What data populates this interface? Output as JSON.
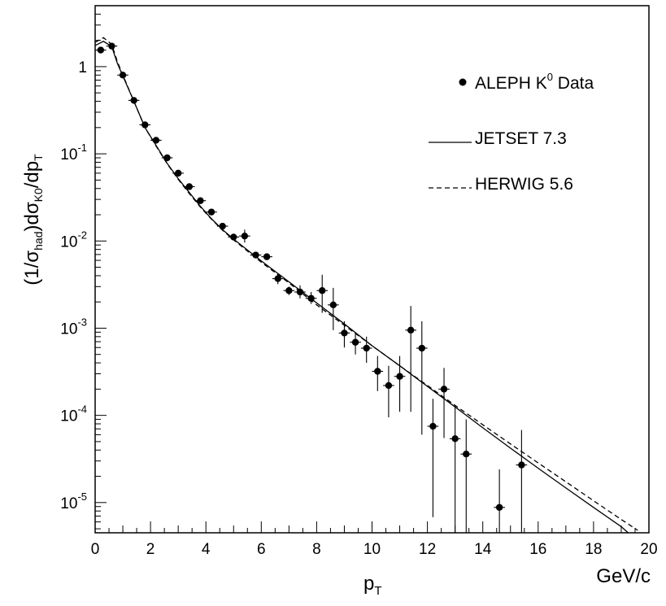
{
  "chart_data": {
    "type": "scatter",
    "yscale": "log",
    "xlim": [
      0,
      20
    ],
    "ylim": [
      4.5e-06,
      5
    ],
    "grid": false,
    "legend_placement": "top-right",
    "xlabel": "p",
    "xlabel_sub": "T",
    "x_unit": "GeV/c",
    "ylabel": {
      "open": "(1/σ",
      "sub1": "had",
      "mid": ")dσ",
      "sub2": "K0",
      "tail": "/dp",
      "sub3": "T"
    },
    "x_ticks": [
      0,
      2,
      4,
      6,
      8,
      10,
      12,
      14,
      16,
      18,
      20
    ],
    "y_ticks": [
      {
        "value": 1,
        "base": "1",
        "exp": ""
      },
      {
        "value": 0.1,
        "base": "10",
        "exp": "-1"
      },
      {
        "value": 0.01,
        "base": "10",
        "exp": "-2"
      },
      {
        "value": 0.001,
        "base": "10",
        "exp": "-3"
      },
      {
        "value": 0.0001,
        "base": "10",
        "exp": "-4"
      },
      {
        "value": 1e-05,
        "base": "10",
        "exp": "-5"
      }
    ],
    "legend": {
      "data": "ALEPH K",
      "data_sup": "0",
      "data_tail": " Data",
      "jetset": "JETSET 7.3",
      "herwig": "HERWIG 5.6"
    },
    "series": [
      {
        "name": "ALEPH K0 Data",
        "kind": "points",
        "points": [
          {
            "x": 0.2,
            "y": 1.55,
            "ylo": 1.45,
            "yhi": 1.65
          },
          {
            "x": 0.6,
            "y": 1.72,
            "ylo": 1.62,
            "yhi": 1.82
          },
          {
            "x": 1.0,
            "y": 0.8,
            "ylo": 0.76,
            "yhi": 0.84
          },
          {
            "x": 1.4,
            "y": 0.41,
            "ylo": 0.39,
            "yhi": 0.43
          },
          {
            "x": 1.8,
            "y": 0.215,
            "ylo": 0.205,
            "yhi": 0.225
          },
          {
            "x": 2.2,
            "y": 0.143,
            "ylo": 0.136,
            "yhi": 0.15
          },
          {
            "x": 2.6,
            "y": 0.09,
            "ylo": 0.086,
            "yhi": 0.094
          },
          {
            "x": 3.0,
            "y": 0.06,
            "ylo": 0.057,
            "yhi": 0.063
          },
          {
            "x": 3.4,
            "y": 0.042,
            "ylo": 0.04,
            "yhi": 0.044
          },
          {
            "x": 3.8,
            "y": 0.029,
            "ylo": 0.0275,
            "yhi": 0.0305
          },
          {
            "x": 4.2,
            "y": 0.0215,
            "ylo": 0.0203,
            "yhi": 0.0227
          },
          {
            "x": 4.6,
            "y": 0.0148,
            "ylo": 0.014,
            "yhi": 0.0156
          },
          {
            "x": 5.0,
            "y": 0.0111,
            "ylo": 0.0104,
            "yhi": 0.0118
          },
          {
            "x": 5.4,
            "y": 0.0114,
            "ylo": 0.0096,
            "yhi": 0.0135
          },
          {
            "x": 5.8,
            "y": 0.0069,
            "ylo": 0.0064,
            "yhi": 0.0074
          },
          {
            "x": 6.2,
            "y": 0.0066,
            "ylo": 0.0061,
            "yhi": 0.0071
          },
          {
            "x": 6.6,
            "y": 0.0037,
            "ylo": 0.0032,
            "yhi": 0.0042
          },
          {
            "x": 7.0,
            "y": 0.0027,
            "ylo": 0.0024,
            "yhi": 0.003
          },
          {
            "x": 7.4,
            "y": 0.0026,
            "ylo": 0.0022,
            "yhi": 0.0031
          },
          {
            "x": 7.8,
            "y": 0.0022,
            "ylo": 0.0019,
            "yhi": 0.0026
          },
          {
            "x": 8.2,
            "y": 0.0027,
            "ylo": 0.0015,
            "yhi": 0.0041
          },
          {
            "x": 8.6,
            "y": 0.00185,
            "ylo": 0.00095,
            "yhi": 0.0029
          },
          {
            "x": 9.0,
            "y": 0.00088,
            "ylo": 0.0006,
            "yhi": 0.0012
          },
          {
            "x": 9.4,
            "y": 0.00069,
            "ylo": 0.0005,
            "yhi": 0.0009
          },
          {
            "x": 9.8,
            "y": 0.00059,
            "ylo": 0.0004,
            "yhi": 0.0008
          },
          {
            "x": 10.2,
            "y": 0.00032,
            "ylo": 0.00019,
            "yhi": 0.00048
          },
          {
            "x": 10.6,
            "y": 0.00022,
            "ylo": 9.5e-05,
            "yhi": 0.00037
          },
          {
            "x": 11.0,
            "y": 0.00028,
            "ylo": 0.00011,
            "yhi": 0.00048
          },
          {
            "x": 11.4,
            "y": 0.00095,
            "ylo": 0.00011,
            "yhi": 0.0018
          },
          {
            "x": 11.8,
            "y": 0.00059,
            "ylo": 6e-05,
            "yhi": 0.0012
          },
          {
            "x": 12.2,
            "y": 7.5e-05,
            "ylo": 6.8e-06,
            "yhi": 0.000155
          },
          {
            "x": 12.6,
            "y": 0.0002,
            "ylo": 5.5e-05,
            "yhi": 0.00035
          },
          {
            "x": 13.0,
            "y": 5.4e-05,
            "ylo": 4.5e-06,
            "yhi": 0.00013
          },
          {
            "x": 13.4,
            "y": 3.6e-05,
            "ylo": 4.5e-06,
            "yhi": 9e-05
          },
          {
            "x": 14.6,
            "y": 8.8e-06,
            "ylo": 4.5e-06,
            "yhi": 2.4e-05
          },
          {
            "x": 15.4,
            "y": 2.7e-05,
            "ylo": 4.5e-06,
            "yhi": 6.8e-05
          }
        ]
      },
      {
        "name": "JETSET 7.3",
        "kind": "line",
        "style": "solid",
        "points": [
          {
            "x": 0.0,
            "y": 1.75
          },
          {
            "x": 0.3,
            "y": 1.95
          },
          {
            "x": 0.6,
            "y": 1.7
          },
          {
            "x": 0.8,
            "y": 1.1
          },
          {
            "x": 1.0,
            "y": 0.78
          },
          {
            "x": 1.4,
            "y": 0.4
          },
          {
            "x": 1.8,
            "y": 0.2
          },
          {
            "x": 2.2,
            "y": 0.125
          },
          {
            "x": 2.6,
            "y": 0.078
          },
          {
            "x": 3.0,
            "y": 0.052
          },
          {
            "x": 3.4,
            "y": 0.036
          },
          {
            "x": 3.8,
            "y": 0.025
          },
          {
            "x": 4.2,
            "y": 0.018
          },
          {
            "x": 4.6,
            "y": 0.0135
          },
          {
            "x": 5.0,
            "y": 0.0105
          },
          {
            "x": 6.0,
            "y": 0.0059
          },
          {
            "x": 7.0,
            "y": 0.0034
          },
          {
            "x": 8.0,
            "y": 0.00195
          },
          {
            "x": 9.0,
            "y": 0.00112
          },
          {
            "x": 10.0,
            "y": 0.00063
          },
          {
            "x": 11.0,
            "y": 0.00037
          },
          {
            "x": 12.0,
            "y": 0.000215
          },
          {
            "x": 13.0,
            "y": 0.000125
          },
          {
            "x": 14.0,
            "y": 7.2e-05
          },
          {
            "x": 15.0,
            "y": 4.2e-05
          },
          {
            "x": 16.0,
            "y": 2.48e-05
          },
          {
            "x": 17.0,
            "y": 1.47e-05
          },
          {
            "x": 18.0,
            "y": 8.8e-06
          },
          {
            "x": 19.0,
            "y": 5.3e-06
          },
          {
            "x": 19.25,
            "y": 4.5e-06
          }
        ]
      },
      {
        "name": "HERWIG 5.6",
        "kind": "line",
        "style": "dashed",
        "points": [
          {
            "x": 0.0,
            "y": 1.9
          },
          {
            "x": 0.3,
            "y": 2.15
          },
          {
            "x": 0.6,
            "y": 1.8
          },
          {
            "x": 0.8,
            "y": 1.15
          },
          {
            "x": 1.0,
            "y": 0.8
          },
          {
            "x": 1.4,
            "y": 0.4
          },
          {
            "x": 1.8,
            "y": 0.2
          },
          {
            "x": 2.2,
            "y": 0.123
          },
          {
            "x": 2.6,
            "y": 0.077
          },
          {
            "x": 3.0,
            "y": 0.051
          },
          {
            "x": 3.4,
            "y": 0.035
          },
          {
            "x": 3.8,
            "y": 0.0245
          },
          {
            "x": 4.2,
            "y": 0.0178
          },
          {
            "x": 4.6,
            "y": 0.0133
          },
          {
            "x": 5.0,
            "y": 0.0103
          },
          {
            "x": 6.0,
            "y": 0.0057
          },
          {
            "x": 7.0,
            "y": 0.0033
          },
          {
            "x": 8.0,
            "y": 0.00185
          },
          {
            "x": 9.0,
            "y": 0.00108
          },
          {
            "x": 10.0,
            "y": 0.00063
          },
          {
            "x": 11.0,
            "y": 0.00037
          },
          {
            "x": 12.0,
            "y": 0.00022
          },
          {
            "x": 13.0,
            "y": 0.00013
          },
          {
            "x": 14.0,
            "y": 7.8e-05
          },
          {
            "x": 15.0,
            "y": 4.7e-05
          },
          {
            "x": 16.0,
            "y": 2.85e-05
          },
          {
            "x": 17.0,
            "y": 1.73e-05
          },
          {
            "x": 18.0,
            "y": 1.05e-05
          },
          {
            "x": 19.0,
            "y": 6.4e-06
          },
          {
            "x": 19.6,
            "y": 4.8e-06
          }
        ]
      }
    ]
  }
}
